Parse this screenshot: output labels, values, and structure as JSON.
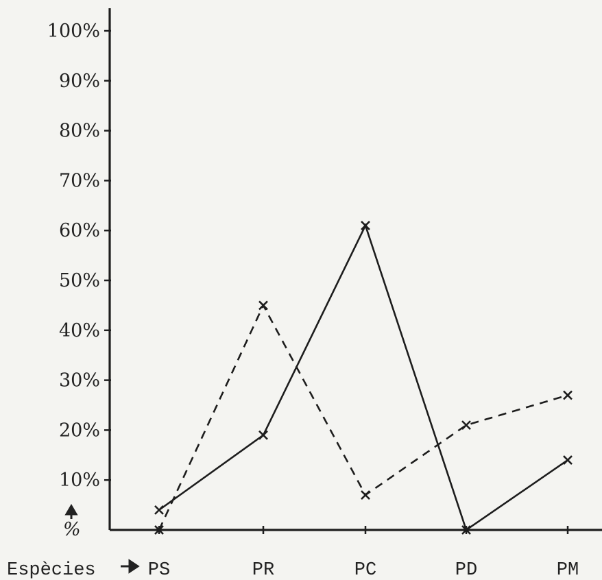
{
  "chart_data": {
    "type": "line",
    "categories": [
      "PS",
      "PR",
      "PC",
      "PD",
      "PM"
    ],
    "series": [
      {
        "style": "solid",
        "values": [
          4,
          19,
          61,
          0,
          14
        ]
      },
      {
        "style": "dashed",
        "values": [
          0,
          45,
          7,
          21,
          27
        ]
      }
    ],
    "ylim": [
      0,
      100
    ],
    "yticks": [
      10,
      20,
      30,
      40,
      50,
      60,
      70,
      80,
      90,
      100
    ],
    "ytick_labels": [
      "10%",
      "20%",
      "30%",
      "40%",
      "50%",
      "60%",
      "70%",
      "80%",
      "90%",
      "100%"
    ],
    "ylabel": "%",
    "xlabel": "Espècies",
    "grid": false,
    "legend": "none",
    "line_color": "#1d1d1d"
  }
}
